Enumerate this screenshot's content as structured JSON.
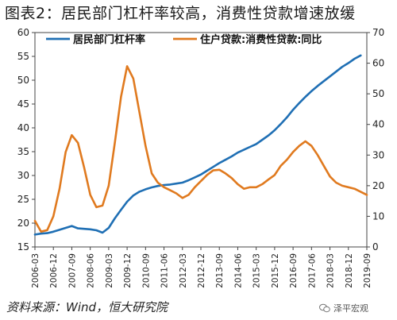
{
  "title": "图表2：居民部门杠杆率较高，消费性贷款增速放缓",
  "source": "资料来源：Wind，恒大研究院",
  "watermark": "泽平宏观",
  "colors": {
    "leverage": "#1f6fb4",
    "loan": "#e07a1f",
    "axis": "#444444"
  },
  "chart_data": {
    "type": "line",
    "title": "图表2：居民部门杠杆率较高，消费性贷款增速放缓",
    "y_left": {
      "min": 15,
      "max": 60,
      "step": 5,
      "ticks": [
        "15",
        "20",
        "25",
        "30",
        "35",
        "40",
        "45",
        "50",
        "55",
        "60"
      ]
    },
    "y_right": {
      "min": 0,
      "max": 70,
      "step": 10,
      "ticks": [
        "0",
        "10",
        "20",
        "30",
        "40",
        "50",
        "60",
        "70"
      ]
    },
    "x_range": [
      "2006-03",
      "2019-09"
    ],
    "x_ticks": [
      "2006-03",
      "2006-12",
      "2007-09",
      "2008-06",
      "2009-03",
      "2009-12",
      "2010-09",
      "2011-06",
      "2012-03",
      "2012-12",
      "2013-09",
      "2014-06",
      "2015-03",
      "2015-12",
      "2016-09",
      "2017-06",
      "2018-03",
      "2018-12",
      "2019-09"
    ],
    "legend_position": "top",
    "series": [
      {
        "name": "居民部门杠杆率",
        "axis": "left",
        "color": "#1f6fb4",
        "points": [
          [
            "2006-03",
            17.6
          ],
          [
            "2006-06",
            17.8
          ],
          [
            "2006-09",
            17.9
          ],
          [
            "2006-12",
            18.2
          ],
          [
            "2007-03",
            18.6
          ],
          [
            "2007-06",
            19.0
          ],
          [
            "2007-09",
            19.4
          ],
          [
            "2007-12",
            18.9
          ],
          [
            "2008-03",
            18.8
          ],
          [
            "2008-06",
            18.7
          ],
          [
            "2008-09",
            18.5
          ],
          [
            "2008-12",
            18.0
          ],
          [
            "2009-03",
            19.0
          ],
          [
            "2009-06",
            21.0
          ],
          [
            "2009-09",
            22.8
          ],
          [
            "2009-12",
            24.5
          ],
          [
            "2010-03",
            25.8
          ],
          [
            "2010-06",
            26.6
          ],
          [
            "2010-09",
            27.1
          ],
          [
            "2010-12",
            27.5
          ],
          [
            "2011-03",
            27.8
          ],
          [
            "2011-06",
            28.0
          ],
          [
            "2011-09",
            28.1
          ],
          [
            "2011-12",
            28.3
          ],
          [
            "2012-03",
            28.5
          ],
          [
            "2012-06",
            29.0
          ],
          [
            "2012-09",
            29.6
          ],
          [
            "2012-12",
            30.2
          ],
          [
            "2013-03",
            31.0
          ],
          [
            "2013-06",
            31.8
          ],
          [
            "2013-09",
            32.6
          ],
          [
            "2013-12",
            33.3
          ],
          [
            "2014-03",
            34.0
          ],
          [
            "2014-06",
            34.8
          ],
          [
            "2014-09",
            35.4
          ],
          [
            "2014-12",
            36.0
          ],
          [
            "2015-03",
            36.6
          ],
          [
            "2015-06",
            37.5
          ],
          [
            "2015-09",
            38.4
          ],
          [
            "2015-12",
            39.5
          ],
          [
            "2016-03",
            40.8
          ],
          [
            "2016-06",
            42.2
          ],
          [
            "2016-09",
            43.8
          ],
          [
            "2016-12",
            45.2
          ],
          [
            "2017-03",
            46.5
          ],
          [
            "2017-06",
            47.7
          ],
          [
            "2017-09",
            48.8
          ],
          [
            "2017-12",
            49.8
          ],
          [
            "2018-03",
            50.8
          ],
          [
            "2018-06",
            51.8
          ],
          [
            "2018-09",
            52.8
          ],
          [
            "2018-12",
            53.6
          ],
          [
            "2019-03",
            54.5
          ],
          [
            "2019-06",
            55.2
          ]
        ]
      },
      {
        "name": "住户贷款:消费性贷款:同比",
        "axis": "right",
        "color": "#e07a1f",
        "points": [
          [
            "2006-03",
            8.5
          ],
          [
            "2006-06",
            5.0
          ],
          [
            "2006-09",
            5.5
          ],
          [
            "2006-12",
            10.0
          ],
          [
            "2007-03",
            19.0
          ],
          [
            "2007-06",
            31.0
          ],
          [
            "2007-09",
            36.5
          ],
          [
            "2007-12",
            34.0
          ],
          [
            "2008-03",
            26.0
          ],
          [
            "2008-06",
            17.0
          ],
          [
            "2008-09",
            13.0
          ],
          [
            "2008-12",
            13.5
          ],
          [
            "2009-03",
            20.0
          ],
          [
            "2009-06",
            34.0
          ],
          [
            "2009-09",
            49.0
          ],
          [
            "2009-12",
            59.0
          ],
          [
            "2010-03",
            55.0
          ],
          [
            "2010-06",
            44.0
          ],
          [
            "2010-09",
            33.0
          ],
          [
            "2010-12",
            24.0
          ],
          [
            "2011-03",
            21.0
          ],
          [
            "2011-06",
            19.5
          ],
          [
            "2011-09",
            18.5
          ],
          [
            "2011-12",
            17.5
          ],
          [
            "2012-03",
            16.0
          ],
          [
            "2012-06",
            17.0
          ],
          [
            "2012-09",
            19.5
          ],
          [
            "2012-12",
            21.5
          ],
          [
            "2013-03",
            23.5
          ],
          [
            "2013-06",
            25.0
          ],
          [
            "2013-09",
            25.2
          ],
          [
            "2013-12",
            24.0
          ],
          [
            "2014-03",
            22.5
          ],
          [
            "2014-06",
            20.5
          ],
          [
            "2014-09",
            19.0
          ],
          [
            "2014-12",
            19.5
          ],
          [
            "2015-03",
            19.5
          ],
          [
            "2015-06",
            20.5
          ],
          [
            "2015-09",
            22.0
          ],
          [
            "2015-12",
            23.5
          ],
          [
            "2016-03",
            26.5
          ],
          [
            "2016-06",
            28.5
          ],
          [
            "2016-09",
            31.0
          ],
          [
            "2016-12",
            33.0
          ],
          [
            "2017-03",
            34.5
          ],
          [
            "2017-06",
            33.0
          ],
          [
            "2017-09",
            30.0
          ],
          [
            "2017-12",
            26.5
          ],
          [
            "2018-03",
            23.0
          ],
          [
            "2018-06",
            21.0
          ],
          [
            "2018-09",
            20.0
          ],
          [
            "2018-12",
            19.5
          ],
          [
            "2019-03",
            19.0
          ],
          [
            "2019-06",
            18.0
          ],
          [
            "2019-09",
            17.0
          ]
        ]
      }
    ]
  }
}
